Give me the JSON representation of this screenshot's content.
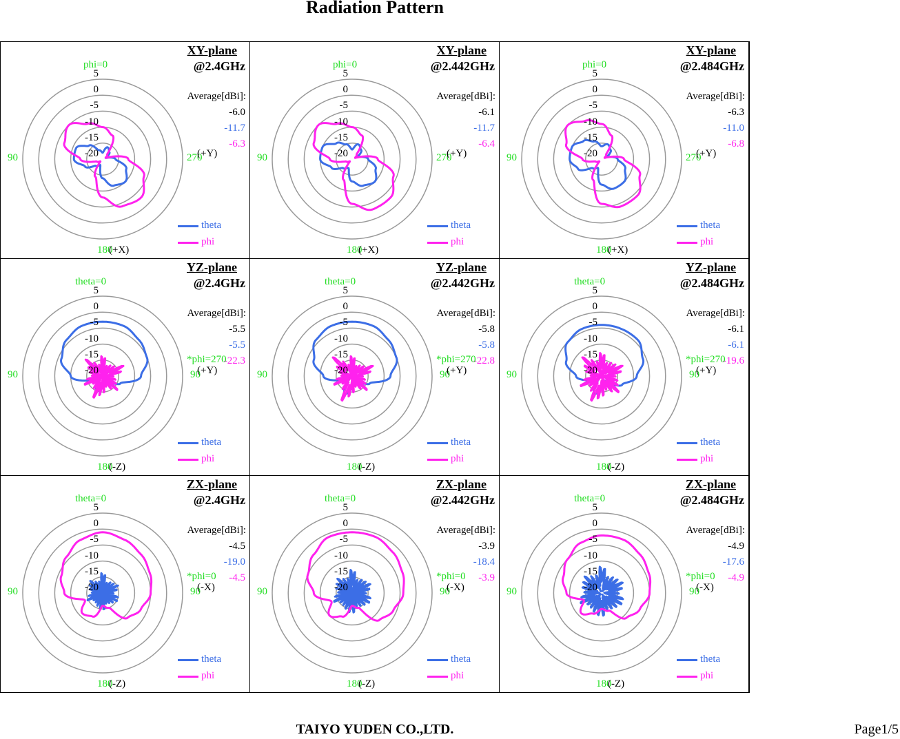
{
  "title": "Radiation Pattern",
  "footer": "TAIYO YUDEN CO.,LTD.",
  "page": "Page1/5",
  "colors": {
    "theta": "#3c6ee6",
    "phi": "#ff22ee",
    "angle": "#22dd22",
    "ring": "#999999"
  },
  "legend": {
    "theta": "theta",
    "phi": "phi"
  },
  "average_label": "Average[dBi]:",
  "ring_labels": [
    "5",
    "0",
    "-5",
    "-10",
    "-15",
    "-20"
  ],
  "chart_data": [
    {
      "type": "polar",
      "plane": "XY-plane",
      "freq": "@2.4GHz",
      "avg": [
        "-6.0",
        "-11.7",
        "-6.3"
      ],
      "top": "phi=0",
      "left": "90",
      "right": "270",
      "right_axis": "(+Y)",
      "bottom": "180",
      "bottom_axis": "(+X)",
      "side_note": "",
      "rlim": [
        -20,
        5
      ],
      "variant": "xy",
      "series": [
        {
          "name": "theta",
          "values": [
            -18,
            -17,
            -14,
            -11,
            -11,
            -14,
            -17,
            -18,
            -14,
            -11,
            -10,
            -12,
            -16,
            -19,
            -17,
            -16
          ]
        },
        {
          "name": "phi",
          "values": [
            -10,
            -8,
            -5,
            -7,
            -13,
            -18,
            -19,
            -14,
            -8,
            -4,
            -3,
            -6,
            -12,
            -19,
            -18,
            -12
          ]
        }
      ]
    },
    {
      "type": "polar",
      "plane": "XY-plane",
      "freq": "@2.442GHz",
      "avg": [
        "-6.1",
        "-11.7",
        "-6.4"
      ],
      "top": "phi=0",
      "left": "90",
      "right": "270",
      "right_axis": "(+Y)",
      "bottom": "180",
      "bottom_axis": "(+X)",
      "side_note": "",
      "rlim": [
        -20,
        5
      ],
      "variant": "xy",
      "series": [
        {
          "name": "theta",
          "values": [
            -17,
            -15,
            -13,
            -10,
            -10,
            -13,
            -16,
            -17,
            -13,
            -11,
            -10,
            -12,
            -15,
            -18,
            -16,
            -15
          ]
        },
        {
          "name": "phi",
          "values": [
            -10,
            -8,
            -5,
            -7,
            -13,
            -18,
            -19,
            -13,
            -6,
            -3,
            -3,
            -6,
            -12,
            -19,
            -18,
            -12
          ]
        }
      ]
    },
    {
      "type": "polar",
      "plane": "XY-plane",
      "freq": "@2.484GHz",
      "avg": [
        "-6.3",
        "-11.0",
        "-6.8"
      ],
      "top": "phi=0",
      "left": "90",
      "right": "270",
      "right_axis": "(+Y)",
      "bottom": "180",
      "bottom_axis": "(+X)",
      "side_note": "",
      "rlim": [
        -20,
        5
      ],
      "variant": "xy",
      "series": [
        {
          "name": "theta",
          "values": [
            -16,
            -14,
            -12,
            -10,
            -10,
            -12,
            -16,
            -17,
            -12,
            -10,
            -10,
            -12,
            -15,
            -18,
            -16,
            -15
          ]
        },
        {
          "name": "phi",
          "values": [
            -9,
            -7,
            -5,
            -8,
            -14,
            -18,
            -19,
            -13,
            -6,
            -4,
            -4,
            -7,
            -13,
            -19,
            -18,
            -12
          ]
        }
      ]
    },
    {
      "type": "polar",
      "plane": "YZ-plane",
      "freq": "@2.4GHz",
      "avg": [
        "-5.5",
        "-5.5",
        "-22.3"
      ],
      "top": "theta=0",
      "left": "90",
      "right": "90",
      "right_axis": "(+Y)",
      "bottom": "180",
      "bottom_axis": "(-Z)",
      "side_note": "*phi=270",
      "rlim": [
        -20,
        5
      ],
      "variant": "yz",
      "series": [
        {
          "name": "theta",
          "values": [
            -3,
            -3,
            -4,
            -6,
            -10,
            -16,
            -19,
            -15,
            -17,
            -19,
            -18,
            -14,
            -8,
            -5,
            -4,
            -3
          ]
        },
        {
          "name": "phi",
          "values": [
            -16,
            -19,
            -15,
            -18,
            -19,
            -16,
            -19,
            -15,
            -17,
            -19,
            -16,
            -18,
            -19,
            -15,
            -18,
            -19
          ]
        }
      ]
    },
    {
      "type": "polar",
      "plane": "YZ-plane",
      "freq": "@2.442GHz",
      "avg": [
        "-5.8",
        "-5.8",
        "-22.8"
      ],
      "top": "theta=0",
      "left": "90",
      "right": "90",
      "right_axis": "(+Y)",
      "bottom": "180",
      "bottom_axis": "(-Z)",
      "side_note": "*phi=270",
      "rlim": [
        -20,
        5
      ],
      "variant": "yz",
      "series": [
        {
          "name": "theta",
          "values": [
            -3,
            -3,
            -4,
            -7,
            -11,
            -16,
            -19,
            -14,
            -16,
            -19,
            -18,
            -14,
            -8,
            -5,
            -4,
            -3
          ]
        },
        {
          "name": "phi",
          "values": [
            -16,
            -19,
            -14,
            -18,
            -19,
            -16,
            -19,
            -14,
            -17,
            -19,
            -16,
            -18,
            -19,
            -15,
            -18,
            -19
          ]
        }
      ]
    },
    {
      "type": "polar",
      "plane": "YZ-plane",
      "freq": "@2.484GHz",
      "avg": [
        "-6.1",
        "-6.1",
        "-19.6"
      ],
      "top": "theta=0",
      "left": "90",
      "right": "90",
      "right_axis": "(+Y)",
      "bottom": "180",
      "bottom_axis": "(-Z)",
      "side_note": "*phi=270",
      "rlim": [
        -20,
        5
      ],
      "variant": "yz",
      "series": [
        {
          "name": "theta",
          "values": [
            -4,
            -4,
            -5,
            -8,
            -12,
            -16,
            -19,
            -14,
            -16,
            -19,
            -17,
            -13,
            -9,
            -6,
            -4,
            -4
          ]
        },
        {
          "name": "phi",
          "values": [
            -15,
            -18,
            -14,
            -17,
            -19,
            -15,
            -18,
            -14,
            -16,
            -18,
            -15,
            -17,
            -18,
            -15,
            -17,
            -18
          ]
        }
      ]
    },
    {
      "type": "polar",
      "plane": "ZX-plane",
      "freq": "@2.4GHz",
      "avg": [
        "-4.5",
        "-19.0",
        "-4.5"
      ],
      "top": "theta=0",
      "left": "90",
      "right": "90",
      "right_axis": "(-X)",
      "bottom": "180",
      "bottom_axis": "(-Z)",
      "side_note": "*phi=0",
      "rlim": [
        -20,
        5
      ],
      "variant": "zx",
      "series": [
        {
          "name": "theta",
          "values": [
            -16,
            -19,
            -17,
            -18,
            -19,
            -17,
            -19,
            -18,
            -17,
            -19,
            -18,
            -17,
            -19,
            -17,
            -18,
            -19
          ]
        },
        {
          "name": "phi",
          "values": [
            -1,
            -2,
            -4,
            -6,
            -8,
            -14,
            -11,
            -12,
            -16,
            -15,
            -9,
            -7,
            -5,
            -4,
            -3,
            -2
          ]
        }
      ]
    },
    {
      "type": "polar",
      "plane": "ZX-plane",
      "freq": "@2.442GHz",
      "avg": [
        "-3.9",
        "-18.4",
        "-3.9"
      ],
      "top": "theta=0",
      "left": "90",
      "right": "90",
      "right_axis": "(-X)",
      "bottom": "180",
      "bottom_axis": "(-Z)",
      "side_note": "*phi=0",
      "rlim": [
        -20,
        5
      ],
      "variant": "zx",
      "series": [
        {
          "name": "theta",
          "values": [
            -15,
            -18,
            -16,
            -17,
            -18,
            -16,
            -18,
            -17,
            -16,
            -18,
            -17,
            -16,
            -18,
            -16,
            -17,
            -18
          ]
        },
        {
          "name": "phi",
          "values": [
            -1,
            -1,
            -3,
            -5,
            -8,
            -13,
            -10,
            -12,
            -16,
            -15,
            -8,
            -6,
            -4,
            -3,
            -2,
            -1
          ]
        }
      ]
    },
    {
      "type": "polar",
      "plane": "ZX-plane",
      "freq": "@2.484GHz",
      "avg": [
        "-4.9",
        "-17.6",
        "-4.9"
      ],
      "top": "theta=0",
      "left": "90",
      "right": "90",
      "right_axis": "(-X)",
      "bottom": "180",
      "bottom_axis": "(-Z)",
      "side_note": "*phi=0",
      "rlim": [
        -20,
        5
      ],
      "variant": "zx",
      "series": [
        {
          "name": "theta",
          "values": [
            -14,
            -17,
            -15,
            -16,
            -17,
            -15,
            -17,
            -16,
            -15,
            -17,
            -16,
            -15,
            -17,
            -15,
            -16,
            -17
          ]
        },
        {
          "name": "phi",
          "values": [
            -2,
            -3,
            -5,
            -7,
            -9,
            -14,
            -11,
            -13,
            -15,
            -14,
            -9,
            -7,
            -5,
            -4,
            -3,
            -2
          ]
        }
      ]
    }
  ]
}
